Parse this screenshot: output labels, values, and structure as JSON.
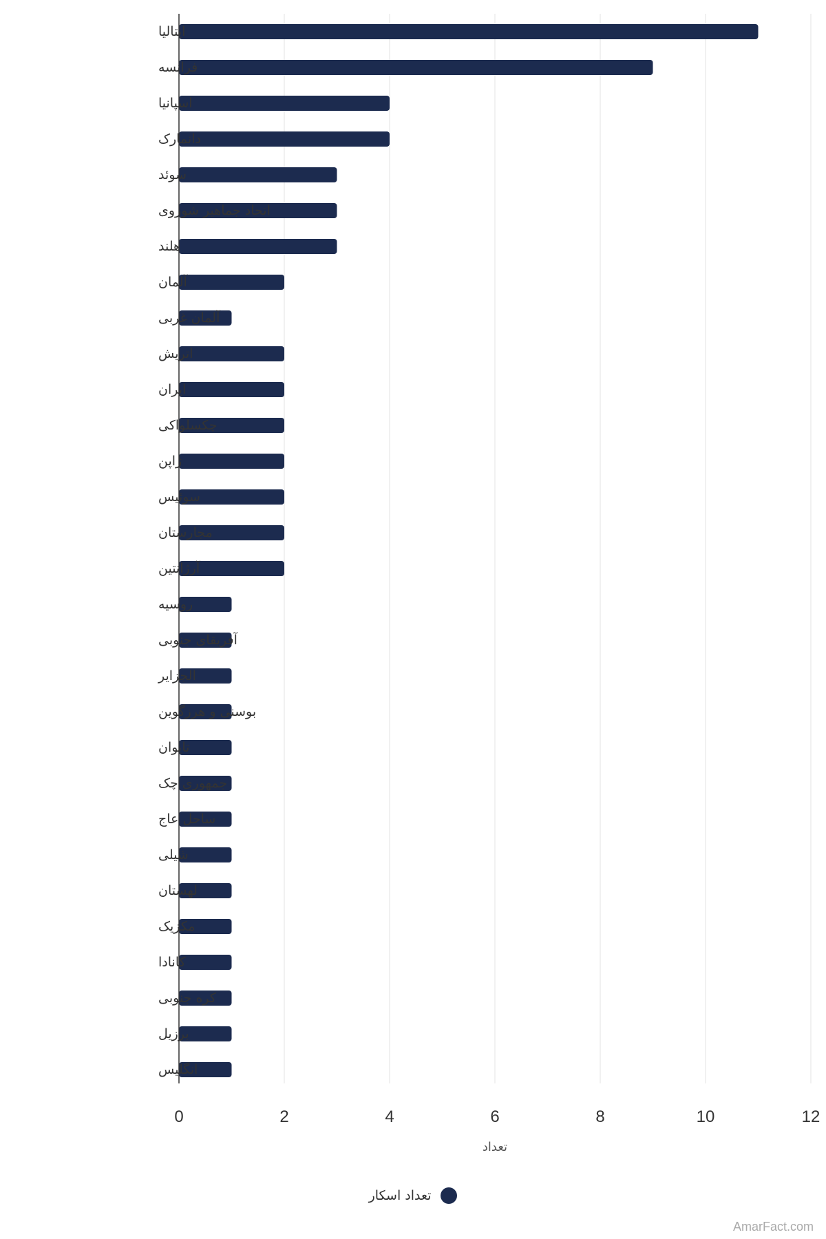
{
  "chart_data": {
    "type": "bar",
    "orientation": "horizontal",
    "categories": [
      "ایتالیا",
      "فرانسه",
      "اسپانیا",
      "دانمارک",
      "سوئد",
      "اتحاد جماهیر شوروی",
      "هلند",
      "آلمان",
      "آلمان غربی",
      "اتریش",
      "ایران",
      "چکسلواکی",
      "ژاپن",
      "سوئیس",
      "مجارستان",
      "آرژانتین",
      "روسیه",
      "آفریقای جنوبی",
      "الجزایر",
      "بوسنی و هرزگوین",
      "تایوان",
      "جمهوری چک",
      "ساحل عاج",
      "شیلی",
      "لهستان",
      "مکزیک",
      "کانادا",
      "کره جنوبی",
      "برزیل",
      "انگلیس"
    ],
    "series": [
      {
        "name": "تعداد اسکار",
        "values": [
          11,
          9,
          4,
          4,
          3,
          3,
          3,
          2,
          1,
          2,
          2,
          2,
          2,
          2,
          2,
          2,
          1,
          1,
          1,
          1,
          1,
          1,
          1,
          1,
          1,
          1,
          1,
          1,
          1,
          1
        ]
      }
    ],
    "xlabel": "تعداد",
    "ylabel": "",
    "xlim": [
      0,
      12
    ],
    "xticks": [
      0,
      2,
      4,
      6,
      8,
      10,
      12
    ],
    "grid": "vertical",
    "legend_position": "bottom-center",
    "bar_color": "#1c2b4f"
  },
  "legend": {
    "label": "تعداد اسکار"
  },
  "source": {
    "text": "AmarFact.com"
  }
}
